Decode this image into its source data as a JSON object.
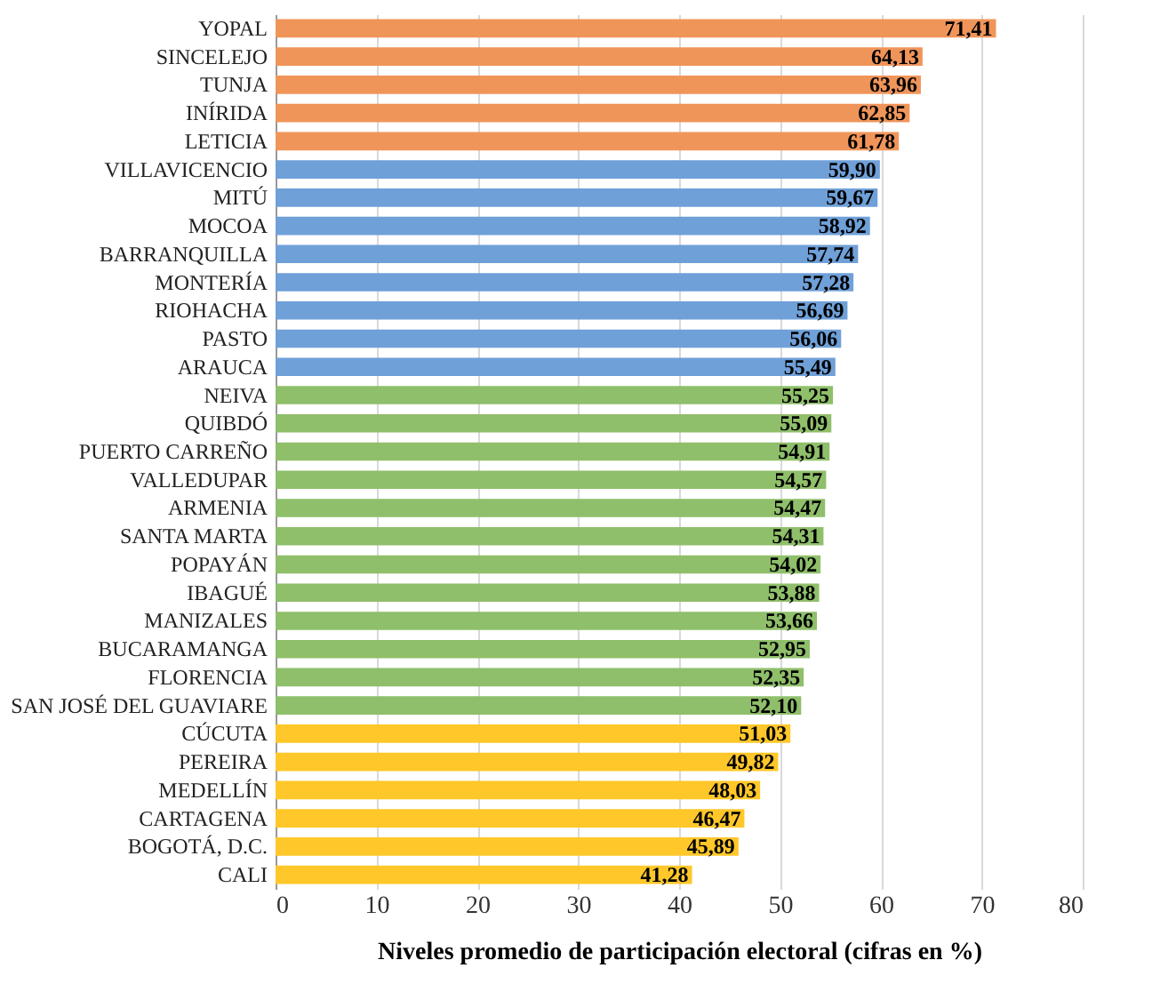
{
  "chart_data": {
    "type": "bar",
    "orientation": "horizontal",
    "xlabel": "Niveles promedio de participación electoral (cifras en %)",
    "categories": [
      "YOPAL",
      "SINCELEJO",
      "TUNJA",
      "INÍRIDA",
      "LETICIA",
      "VILLAVICENCIO",
      "MITÚ",
      "MOCOA",
      "BARRANQUILLA",
      "MONTERÍA",
      "RIOHACHA",
      "PASTO",
      "ARAUCA",
      "NEIVA",
      "QUIBDÓ",
      "PUERTO CARREÑO",
      "VALLEDUPAR",
      "ARMENIA",
      "SANTA MARTA",
      "POPAYÁN",
      "IBAGUÉ",
      "MANIZALES",
      "BUCARAMANGA",
      "FLORENCIA",
      "SAN JOSÉ DEL GUAVIARE",
      "CÚCUTA",
      "PEREIRA",
      "MEDELLÍN",
      "CARTAGENA",
      "BOGOTÁ, D.C.",
      "CALI"
    ],
    "values": [
      71.41,
      64.13,
      63.96,
      62.85,
      61.78,
      59.9,
      59.67,
      58.92,
      57.74,
      57.28,
      56.69,
      56.06,
      55.49,
      55.25,
      55.09,
      54.91,
      54.57,
      54.47,
      54.31,
      54.02,
      53.88,
      53.66,
      52.95,
      52.35,
      52.1,
      51.03,
      49.82,
      48.03,
      46.47,
      45.89,
      41.28
    ],
    "value_labels": [
      "71,41",
      "64,13",
      "63,96",
      "62,85",
      "61,78",
      "59,90",
      "59,67",
      "58,92",
      "57,74",
      "57,28",
      "56,69",
      "56,06",
      "55,49",
      "55,25",
      "55,09",
      "54,91",
      "54,57",
      "54,47",
      "54,31",
      "54,02",
      "53,88",
      "53,66",
      "52,95",
      "52,35",
      "52,10",
      "51,03",
      "49,82",
      "48,03",
      "46,47",
      "45,89",
      "41,28"
    ],
    "colors": [
      "#f0955a",
      "#f0955a",
      "#f0955a",
      "#f0955a",
      "#f0955a",
      "#6fa0d8",
      "#6fa0d8",
      "#6fa0d8",
      "#6fa0d8",
      "#6fa0d8",
      "#6fa0d8",
      "#6fa0d8",
      "#6fa0d8",
      "#8fbf6a",
      "#8fbf6a",
      "#8fbf6a",
      "#8fbf6a",
      "#8fbf6a",
      "#8fbf6a",
      "#8fbf6a",
      "#8fbf6a",
      "#8fbf6a",
      "#8fbf6a",
      "#8fbf6a",
      "#8fbf6a",
      "#ffc729",
      "#ffc729",
      "#ffc729",
      "#ffc729",
      "#ffc729",
      "#ffc729"
    ],
    "xlim": [
      0,
      80
    ],
    "xticks": [
      0,
      10,
      20,
      30,
      40,
      50,
      60,
      70,
      80
    ],
    "grid": "x"
  }
}
